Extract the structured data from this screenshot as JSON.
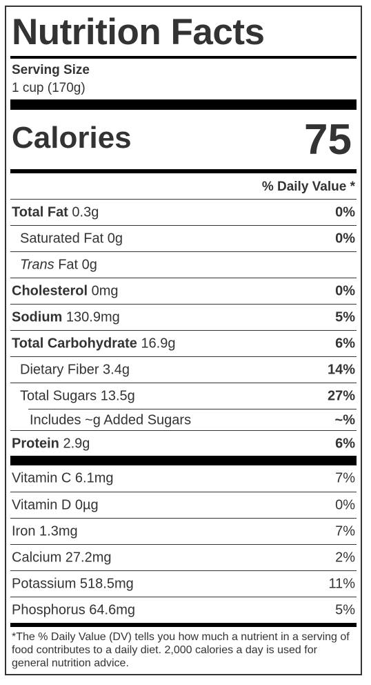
{
  "title": "Nutrition Facts",
  "serving": {
    "label": "Serving Size",
    "value": "1 cup (170g)"
  },
  "calories": {
    "label": "Calories",
    "value": "75"
  },
  "daily_value_header": "% Daily Value *",
  "nutrients": [
    {
      "name": "Total Fat",
      "amount": "0.3g",
      "dv": "0%",
      "bold": true
    },
    {
      "name": "Saturated Fat",
      "amount": "0g",
      "dv": "0%",
      "bold": false
    },
    {
      "name": "Trans",
      "amount": "Fat 0g",
      "dv": "",
      "bold": false
    },
    {
      "name": "Cholesterol",
      "amount": "0mg",
      "dv": "0%",
      "bold": true
    },
    {
      "name": "Sodium",
      "amount": "130.9mg",
      "dv": "5%",
      "bold": true
    },
    {
      "name": "Total Carbohydrate",
      "amount": "16.9g",
      "dv": "6%",
      "bold": true
    },
    {
      "name": "Dietary Fiber",
      "amount": "3.4g",
      "dv": "14%",
      "bold": false
    },
    {
      "name": "Total Sugars",
      "amount": "13.5g",
      "dv": "27%",
      "bold": false
    },
    {
      "name": "Includes ~g Added Sugars",
      "amount": "",
      "dv": "~%",
      "bold": false
    },
    {
      "name": "Protein",
      "amount": "2.9g",
      "dv": "6%",
      "bold": true
    }
  ],
  "vitamins": [
    {
      "text": "Vitamin C 6.1mg",
      "dv": "7%"
    },
    {
      "text": "Vitamin D 0µg",
      "dv": "0%"
    },
    {
      "text": "Iron 1.3mg",
      "dv": "7%"
    },
    {
      "text": "Calcium 27.2mg",
      "dv": "2%"
    },
    {
      "text": "Potassium 518.5mg",
      "dv": "11%"
    },
    {
      "text": "Phosphorus 64.6mg",
      "dv": "5%"
    }
  ],
  "footnote": "*The % Daily Value (DV) tells you how much a nutrient in a serving of food contributes to a daily diet. 2,000 calories a day is used for general nutrition advice."
}
